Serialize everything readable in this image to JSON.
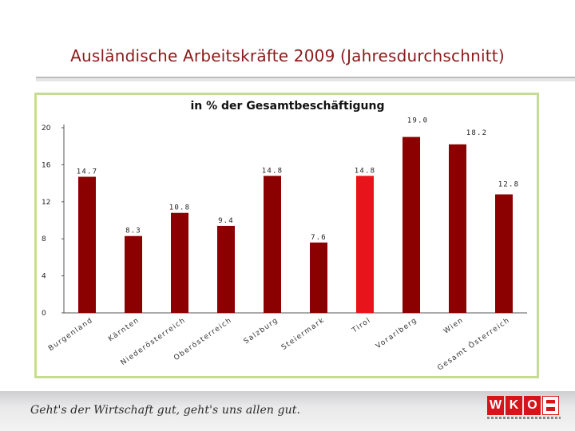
{
  "page": {
    "title": "Ausländische Arbeitskräfte 2009 (Jahresdurchschnitt)",
    "slogan": "Geht's der Wirtschaft gut, geht's uns allen gut.",
    "logo_text": "WKO"
  },
  "chart_data": {
    "type": "bar",
    "title": "in % der Gesamtbeschäftigung",
    "xlabel": "",
    "ylabel": "",
    "ylim": [
      0,
      20
    ],
    "yticks": [
      "0",
      "4",
      "8",
      "12",
      "16",
      "20"
    ],
    "grid": false,
    "categories": [
      "Burgenland",
      "Kärnten",
      "Niederösterreich",
      "Oberösterreich",
      "Salzburg",
      "Steiermark",
      "Tirol",
      "Vorarlberg",
      "Wien",
      "Gesamt Österreich"
    ],
    "values": [
      14.7,
      8.3,
      10.8,
      9.4,
      14.8,
      7.6,
      14.8,
      null,
      null,
      12.8
    ],
    "value_labels": [
      "14.7",
      "8.3",
      "10.8",
      "9.4",
      "14.8",
      "7.6",
      "14.8",
      "19.0",
      "18.2",
      "12.8"
    ],
    "values_full": [
      14.7,
      8.3,
      10.8,
      9.4,
      14.8,
      7.6,
      14.8,
      19.0,
      18.2,
      12.8
    ],
    "highlight_index": 6,
    "colors": {
      "bar": "#8b0000",
      "highlight": "#e8141b",
      "axis": "#555555"
    }
  }
}
